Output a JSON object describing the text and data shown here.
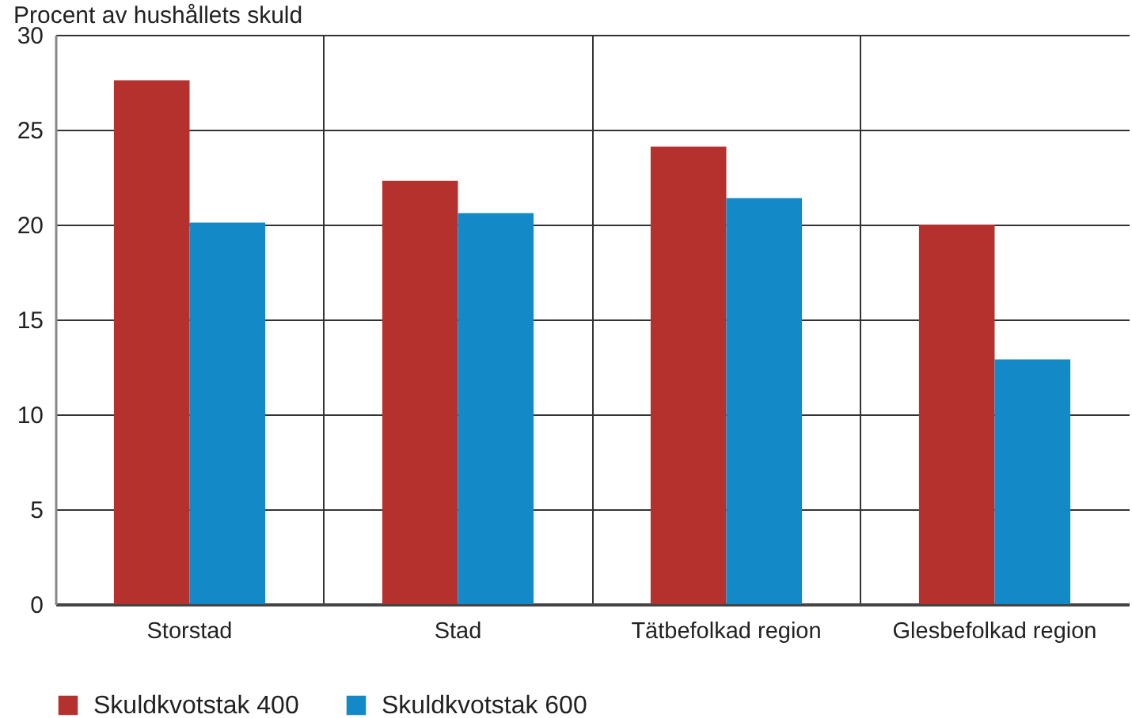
{
  "chart_data": {
    "type": "bar",
    "ylabel": "Procent av hushållets skuld",
    "categories": [
      "Storstad",
      "Stad",
      "Tätbefolkad region",
      "Glesbefolkad region"
    ],
    "series": [
      {
        "name": "Skuldkvotstak 400",
        "color": "#b5312e",
        "values": [
          27.6,
          22.3,
          24.1,
          20.0
        ]
      },
      {
        "name": "Skuldkvotstak 600",
        "color": "#1489c7",
        "values": [
          20.1,
          20.6,
          21.4,
          12.9
        ]
      }
    ],
    "ylim": [
      0,
      30
    ],
    "yticks": [
      0,
      5,
      10,
      15,
      20,
      25,
      30
    ],
    "grid": true,
    "legend": "bottom"
  }
}
